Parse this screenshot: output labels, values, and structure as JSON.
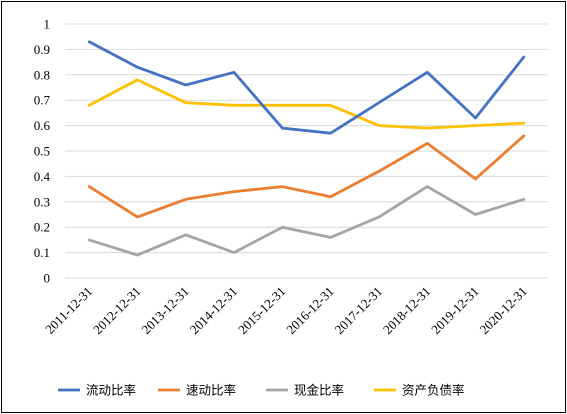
{
  "chart_data": {
    "type": "line",
    "title": "",
    "xlabel": "",
    "ylabel": "",
    "ylim": [
      0,
      1
    ],
    "y_ticks": [
      "0",
      "0.1",
      "0.2",
      "0.3",
      "0.4",
      "0.5",
      "0.6",
      "0.7",
      "0.8",
      "0.9",
      "1"
    ],
    "categories": [
      "2011-12-31",
      "2012-12-31",
      "2013-12-31",
      "2014-12-31",
      "2015-12-31",
      "2016-12-31",
      "2017-12-31",
      "2018-12-31",
      "2019-12-31",
      "2020-12-31"
    ],
    "grid": true,
    "legend_position": "bottom",
    "series": [
      {
        "name": "流动比率",
        "color": "#4472C4",
        "values": [
          0.93,
          0.83,
          0.76,
          0.81,
          0.59,
          0.57,
          0.69,
          0.81,
          0.63,
          0.87
        ]
      },
      {
        "name": "速动比率",
        "color": "#ED7D31",
        "values": [
          0.36,
          0.24,
          0.31,
          0.34,
          0.36,
          0.32,
          0.42,
          0.53,
          0.39,
          0.56
        ]
      },
      {
        "name": "现金比率",
        "color": "#A5A5A5",
        "values": [
          0.15,
          0.09,
          0.17,
          0.1,
          0.2,
          0.16,
          0.24,
          0.36,
          0.25,
          0.31
        ]
      },
      {
        "name": "资产负债率",
        "color": "#FFC000",
        "values": [
          0.68,
          0.78,
          0.69,
          0.68,
          0.68,
          0.68,
          0.6,
          0.59,
          0.6,
          0.61
        ]
      }
    ]
  }
}
